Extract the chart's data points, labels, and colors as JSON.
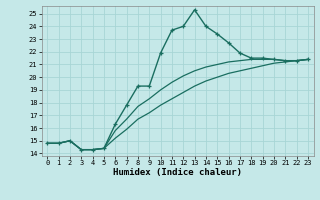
{
  "xlabel": "Humidex (Indice chaleur)",
  "bg_color": "#c5e8e8",
  "grid_color": "#a8d5d5",
  "line_color": "#1a6e60",
  "xlim": [
    -0.5,
    23.5
  ],
  "ylim": [
    13.8,
    25.6
  ],
  "x_ticks": [
    0,
    1,
    2,
    3,
    4,
    5,
    6,
    7,
    8,
    9,
    10,
    11,
    12,
    13,
    14,
    15,
    16,
    17,
    18,
    19,
    20,
    21,
    22,
    23
  ],
  "y_ticks": [
    14,
    15,
    16,
    17,
    18,
    19,
    20,
    21,
    22,
    23,
    24,
    25
  ],
  "curve_x": [
    0,
    1,
    2,
    3,
    4,
    5,
    6,
    7,
    8,
    9,
    10,
    11,
    12,
    13,
    14,
    15,
    16,
    17,
    18,
    19,
    20,
    21,
    22,
    23
  ],
  "curve_y": [
    14.8,
    14.8,
    15.0,
    14.3,
    14.3,
    14.4,
    16.3,
    17.8,
    19.3,
    19.3,
    21.9,
    23.7,
    24.0,
    25.3,
    24.0,
    23.4,
    22.7,
    21.9,
    21.5,
    21.5,
    21.4,
    21.3,
    21.3,
    21.4
  ],
  "low_x": [
    0,
    1,
    2,
    3,
    4,
    5,
    6,
    7,
    8,
    9,
    10,
    11,
    12,
    13,
    14,
    15,
    16,
    17,
    18,
    19,
    20,
    21,
    22,
    23
  ],
  "low_y": [
    14.8,
    14.8,
    15.0,
    14.3,
    14.3,
    14.4,
    15.2,
    15.9,
    16.7,
    17.2,
    17.8,
    18.3,
    18.8,
    19.3,
    19.7,
    20.0,
    20.3,
    20.5,
    20.7,
    20.9,
    21.1,
    21.2,
    21.3,
    21.4
  ],
  "mid_x": [
    0,
    1,
    2,
    3,
    4,
    5,
    6,
    7,
    8,
    9,
    10,
    11,
    12,
    13,
    14,
    15,
    16,
    17,
    18,
    19,
    20,
    21,
    22,
    23
  ],
  "mid_y": [
    14.8,
    14.8,
    15.0,
    14.3,
    14.3,
    14.4,
    15.8,
    16.7,
    17.7,
    18.3,
    19.0,
    19.6,
    20.1,
    20.5,
    20.8,
    21.0,
    21.2,
    21.3,
    21.4,
    21.4,
    21.4,
    21.3,
    21.3,
    21.4
  ]
}
